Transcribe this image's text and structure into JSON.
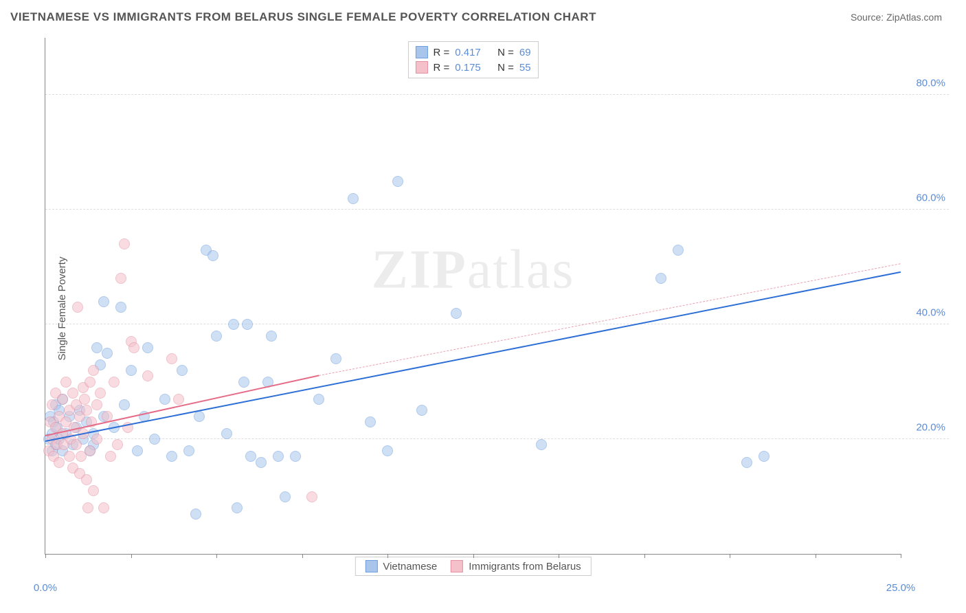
{
  "header": {
    "title": "VIETNAMESE VS IMMIGRANTS FROM BELARUS SINGLE FEMALE POVERTY CORRELATION CHART",
    "source_label": "Source: ",
    "source_name": "ZipAtlas.com"
  },
  "watermark": {
    "part1": "ZIP",
    "part2": "atlas"
  },
  "axes": {
    "ylabel": "Single Female Poverty",
    "xlim": [
      0,
      25
    ],
    "ylim": [
      0,
      90
    ],
    "xticks": [
      0,
      2.5,
      5,
      7.5,
      10,
      12.5,
      15,
      17.5,
      20,
      22.5,
      25
    ],
    "xtick_labels": {
      "0": "0.0%",
      "25": "25.0%"
    },
    "yticks": [
      20,
      40,
      60,
      80
    ],
    "ytick_labels": {
      "20": "20.0%",
      "40": "40.0%",
      "60": "60.0%",
      "80": "80.0%"
    }
  },
  "style": {
    "background": "#ffffff",
    "grid_color": "#dddddd",
    "axis_color": "#888888",
    "tick_label_color": "#5b8dd6",
    "marker_radius": 8,
    "marker_opacity": 0.55
  },
  "series": [
    {
      "key": "vietnamese",
      "label": "Vietnamese",
      "color_fill": "#a8c5ec",
      "color_stroke": "#6f9fde",
      "r_value": "0.417",
      "n_value": "69",
      "trend": {
        "x1": 0,
        "y1": 19.5,
        "x2": 25,
        "y2": 49,
        "color": "#2d6fd6",
        "width": 2,
        "dash": false
      },
      "points": [
        [
          0.1,
          20
        ],
        [
          0.15,
          24
        ],
        [
          0.2,
          18
        ],
        [
          0.2,
          21
        ],
        [
          0.25,
          23
        ],
        [
          0.3,
          19
        ],
        [
          0.3,
          26
        ],
        [
          0.35,
          22
        ],
        [
          0.4,
          20
        ],
        [
          0.4,
          25
        ],
        [
          0.5,
          18
        ],
        [
          0.5,
          27
        ],
        [
          0.6,
          21
        ],
        [
          0.7,
          24
        ],
        [
          0.8,
          19
        ],
        [
          0.9,
          22
        ],
        [
          1.0,
          25
        ],
        [
          1.1,
          20
        ],
        [
          1.2,
          23
        ],
        [
          1.3,
          18
        ],
        [
          1.4,
          21
        ],
        [
          1.5,
          36
        ],
        [
          1.6,
          33
        ],
        [
          1.7,
          44
        ],
        [
          1.7,
          24
        ],
        [
          1.8,
          35
        ],
        [
          1.4,
          19
        ],
        [
          2.0,
          22
        ],
        [
          2.2,
          43
        ],
        [
          2.3,
          26
        ],
        [
          2.5,
          32
        ],
        [
          2.7,
          18
        ],
        [
          2.9,
          24
        ],
        [
          3.0,
          36
        ],
        [
          3.2,
          20
        ],
        [
          3.5,
          27
        ],
        [
          3.7,
          17
        ],
        [
          4.0,
          32
        ],
        [
          4.2,
          18
        ],
        [
          4.4,
          7
        ],
        [
          4.5,
          24
        ],
        [
          4.7,
          53
        ],
        [
          4.9,
          52
        ],
        [
          5.0,
          38
        ],
        [
          5.3,
          21
        ],
        [
          5.5,
          40
        ],
        [
          5.6,
          8
        ],
        [
          5.8,
          30
        ],
        [
          5.9,
          40
        ],
        [
          6.0,
          17
        ],
        [
          6.3,
          16
        ],
        [
          6.5,
          30
        ],
        [
          6.6,
          38
        ],
        [
          6.8,
          17
        ],
        [
          7.0,
          10
        ],
        [
          7.3,
          17
        ],
        [
          8.0,
          27
        ],
        [
          8.5,
          34
        ],
        [
          9.0,
          62
        ],
        [
          9.5,
          23
        ],
        [
          10.0,
          18
        ],
        [
          10.3,
          65
        ],
        [
          11.0,
          25
        ],
        [
          12.0,
          42
        ],
        [
          14.5,
          19
        ],
        [
          18.0,
          48
        ],
        [
          18.5,
          53
        ],
        [
          20.5,
          16
        ],
        [
          21.0,
          17
        ]
      ]
    },
    {
      "key": "belarus",
      "label": "Immigrants from Belarus",
      "color_fill": "#f4c1ca",
      "color_stroke": "#e58fa2",
      "r_value": "0.175",
      "n_value": "55",
      "trend_solid": {
        "x1": 0,
        "y1": 20.5,
        "x2": 8,
        "y2": 31,
        "color": "#e56b87",
        "width": 2,
        "dash": false
      },
      "trend_dash": {
        "x1": 8,
        "y1": 31,
        "x2": 25,
        "y2": 50.5,
        "color": "#e9a0b0",
        "width": 1,
        "dash": true
      },
      "points": [
        [
          0.1,
          18
        ],
        [
          0.15,
          23
        ],
        [
          0.2,
          20
        ],
        [
          0.2,
          26
        ],
        [
          0.25,
          17
        ],
        [
          0.3,
          22
        ],
        [
          0.3,
          28
        ],
        [
          0.35,
          19
        ],
        [
          0.4,
          24
        ],
        [
          0.4,
          16
        ],
        [
          0.5,
          21
        ],
        [
          0.5,
          27
        ],
        [
          0.55,
          19
        ],
        [
          0.6,
          23
        ],
        [
          0.6,
          30
        ],
        [
          0.7,
          17
        ],
        [
          0.7,
          25
        ],
        [
          0.75,
          20
        ],
        [
          0.8,
          28
        ],
        [
          0.8,
          15
        ],
        [
          0.85,
          22
        ],
        [
          0.9,
          26
        ],
        [
          0.9,
          19
        ],
        [
          0.95,
          43
        ],
        [
          1.0,
          14
        ],
        [
          1.0,
          24
        ],
        [
          1.05,
          17
        ],
        [
          1.1,
          29
        ],
        [
          1.1,
          21
        ],
        [
          1.15,
          27
        ],
        [
          1.2,
          13
        ],
        [
          1.2,
          25
        ],
        [
          1.25,
          8
        ],
        [
          1.3,
          30
        ],
        [
          1.3,
          18
        ],
        [
          1.35,
          23
        ],
        [
          1.4,
          32
        ],
        [
          1.4,
          11
        ],
        [
          1.5,
          26
        ],
        [
          1.5,
          20
        ],
        [
          1.6,
          28
        ],
        [
          1.7,
          8
        ],
        [
          1.8,
          24
        ],
        [
          1.9,
          17
        ],
        [
          2.0,
          30
        ],
        [
          2.1,
          19
        ],
        [
          2.2,
          48
        ],
        [
          2.3,
          54
        ],
        [
          2.4,
          22
        ],
        [
          2.5,
          37
        ],
        [
          2.6,
          36
        ],
        [
          3.0,
          31
        ],
        [
          3.7,
          34
        ],
        [
          3.9,
          27
        ],
        [
          7.8,
          10
        ]
      ]
    }
  ],
  "legend_top": {
    "r_prefix": "R =",
    "n_prefix": "N ="
  }
}
